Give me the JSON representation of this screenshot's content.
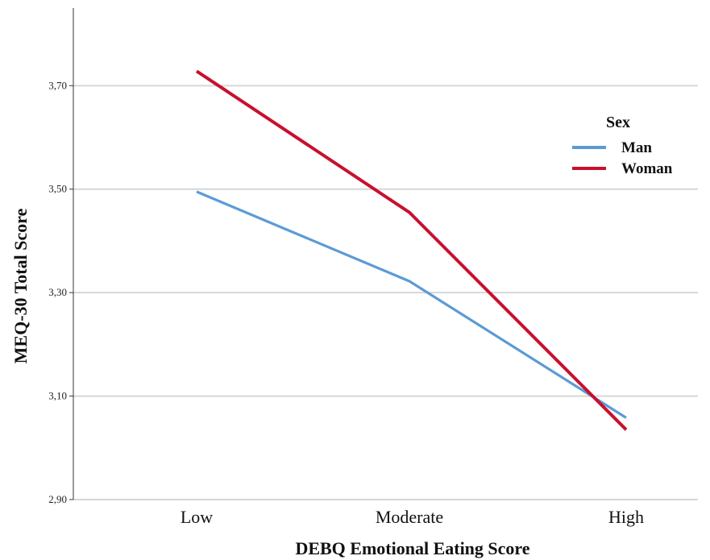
{
  "chart_data": {
    "type": "line",
    "xlabel": "DEBQ Emotional Eating Score",
    "ylabel": "MEQ-30 Total Score",
    "categories": [
      "Low",
      "Moderate",
      "High"
    ],
    "yticks": [
      "2,90",
      "3,10",
      "3,30",
      "3,50",
      "3,70"
    ],
    "ytick_values": [
      2.9,
      3.1,
      3.3,
      3.5,
      3.7
    ],
    "ylim": [
      2.9,
      3.85
    ],
    "grid": true,
    "legend": {
      "title": "Sex",
      "placement": "right"
    },
    "series": [
      {
        "name": "Man",
        "color": "#5b9bd5",
        "values": [
          3.495,
          3.322,
          3.058
        ]
      },
      {
        "name": "Woman",
        "color": "#c8102e",
        "values": [
          3.728,
          3.455,
          3.035
        ]
      }
    ]
  }
}
